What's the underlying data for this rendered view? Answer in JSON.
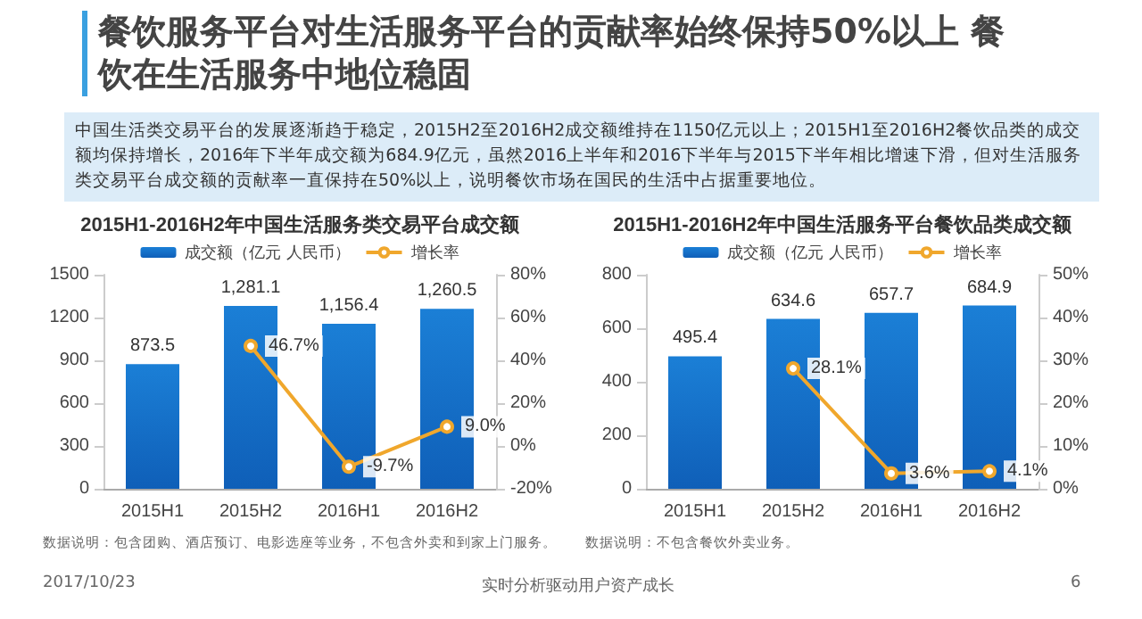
{
  "chart_data": [
    {
      "type": "other",
      "title": "餐饮服务平台对生活服务平台的贡献率始终保持50%以上  餐饮在生活服务中地位稳固",
      "annotations": [
        "中国生活类交易平台的发展逐渐趋于稳定，2015H2至2016H2成交额维持在1150亿元以上；2015H1至2016H2餐饮品类的成交额均保持增长，2016年下半年成交额为684.9亿元，虽然2016上半年和2016下半年与2015下半年相比增速下滑，但对生活服务类交易平台成交额的贡献率一直保持在50%以上，说明餐饮市场在国民的生活中占据重要地位。",
        "2017/10/23",
        "实时分析驱动用户资产成长",
        "6"
      ]
    },
    {
      "type": "bar",
      "title": "2015H1-2016H2年中国生活服务类交易平台成交额",
      "categories": [
        "2015H1",
        "2015H2",
        "2016H1",
        "2016H2"
      ],
      "legend": "top",
      "data_labels": true,
      "series": [
        {
          "name": "成交额（亿元 人民币）",
          "type": "bar",
          "color": "#1b7fd6",
          "values": [
            873.5,
            1281.1,
            1156.4,
            1260.5
          ],
          "value_labels": [
            "873.5",
            "1,281.1",
            "1,156.4",
            "1,260.5"
          ]
        },
        {
          "name": "增长率",
          "type": "line",
          "axis": "y2",
          "color": "#f0a72c",
          "marker": "circle",
          "values": [
            null,
            46.7,
            -9.7,
            9.0
          ],
          "value_labels": [
            null,
            "46.7%",
            "-9.7%",
            "9.0%"
          ]
        }
      ],
      "ylim": [
        0,
        1500
      ],
      "yticks": [
        0,
        300,
        600,
        900,
        1200,
        1500
      ],
      "y2lim": [
        -20,
        80
      ],
      "y2ticks": [
        {
          "value": -20,
          "label": "-20%"
        },
        {
          "value": 0,
          "label": "0%"
        },
        {
          "value": 20,
          "label": "20%"
        },
        {
          "value": 40,
          "label": "40%"
        },
        {
          "value": 60,
          "label": "60%"
        },
        {
          "value": 80,
          "label": "80%"
        }
      ],
      "annotations": [
        "数据说明：包含团购、酒店预订、电影选座等业务，不包含外卖和到家上门服务。"
      ]
    },
    {
      "type": "bar",
      "title": "2015H1-2016H2年中国生活服务平台餐饮品类成交额",
      "categories": [
        "2015H1",
        "2015H2",
        "2016H1",
        "2016H2"
      ],
      "legend": "top",
      "data_labels": true,
      "series": [
        {
          "name": "成交额（亿元 人民币）",
          "type": "bar",
          "color": "#1b7fd6",
          "values": [
            495.4,
            634.6,
            657.7,
            684.9
          ],
          "value_labels": [
            "495.4",
            "634.6",
            "657.7",
            "684.9"
          ]
        },
        {
          "name": "增长率",
          "type": "line",
          "axis": "y2",
          "color": "#f0a72c",
          "marker": "circle",
          "values": [
            null,
            28.1,
            3.6,
            4.1
          ],
          "value_labels": [
            null,
            "28.1%",
            "3.6%",
            "4.1%"
          ]
        }
      ],
      "ylim": [
        0,
        800
      ],
      "yticks": [
        0,
        200,
        400,
        600,
        800
      ],
      "y2lim": [
        0,
        50
      ],
      "y2ticks": [
        {
          "value": 0,
          "label": "0%"
        },
        {
          "value": 10,
          "label": "10%"
        },
        {
          "value": 20,
          "label": "20%"
        },
        {
          "value": 30,
          "label": "30%"
        },
        {
          "value": 40,
          "label": "40%"
        },
        {
          "value": 50,
          "label": "50%"
        }
      ],
      "annotations": [
        "数据说明：不包含餐饮外卖业务。"
      ]
    }
  ]
}
